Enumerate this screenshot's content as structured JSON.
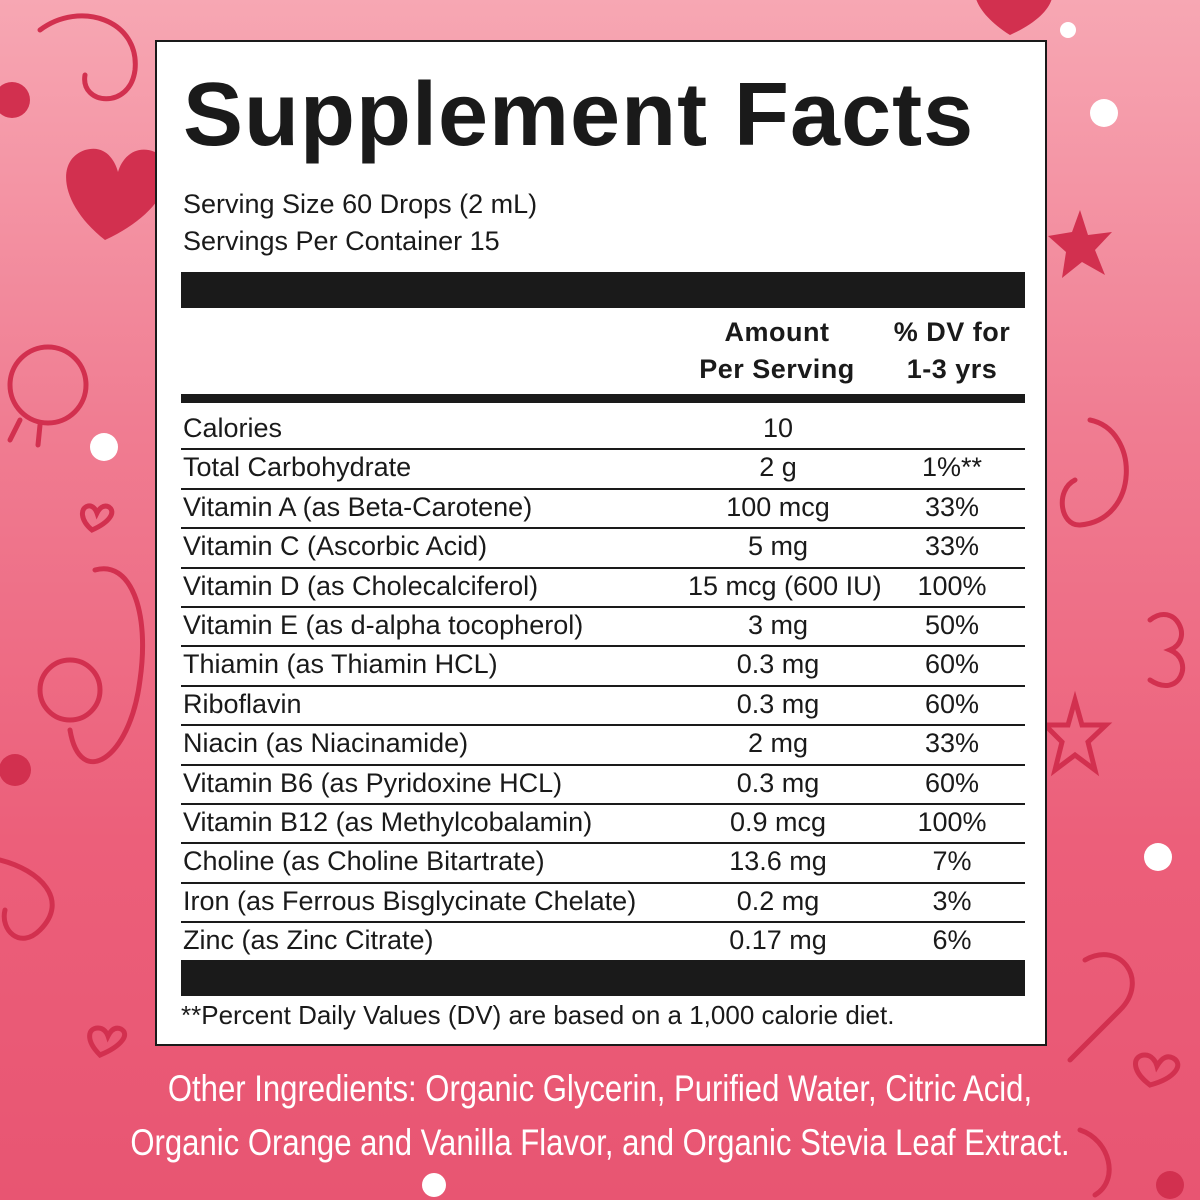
{
  "title": "Supplement Facts",
  "serving_size": "Serving Size 60 Drops (2 mL)",
  "servings_per_container": "Servings Per Container 15",
  "headers": {
    "amount_line1": "Amount",
    "amount_line2": "Per Serving",
    "dv_line1": "% DV for",
    "dv_line2": "1-3 yrs"
  },
  "rows": [
    {
      "name": "Calories",
      "amount": "10",
      "dv": ""
    },
    {
      "name": "Total Carbohydrate",
      "amount": "2 g",
      "dv": "1%**"
    },
    {
      "name": "Vitamin A (as Beta-Carotene)",
      "amount": "100 mcg",
      "dv": "33%"
    },
    {
      "name": "Vitamin C (Ascorbic Acid)",
      "amount": "5 mg",
      "dv": "33%"
    },
    {
      "name": "Vitamin D (as Cholecalciferol)",
      "amount": "15 mcg (600 IU)",
      "dv": "100%"
    },
    {
      "name": "Vitamin E (as d-alpha tocopherol)",
      "amount": "3 mg",
      "dv": "50%"
    },
    {
      "name": "Thiamin (as Thiamin HCL)",
      "amount": "0.3 mg",
      "dv": "60%"
    },
    {
      "name": "Riboflavin",
      "amount": "0.3 mg",
      "dv": "60%"
    },
    {
      "name": "Niacin (as Niacinamide)",
      "amount": "2 mg",
      "dv": "33%"
    },
    {
      "name": "Vitamin B6 (as Pyridoxine HCL)",
      "amount": "0.3 mg",
      "dv": "60%"
    },
    {
      "name": "Vitamin B12 (as Methylcobalamin)",
      "amount": "0.9 mcg",
      "dv": "100%"
    },
    {
      "name": "Choline (as Choline Bitartrate)",
      "amount": "13.6 mg",
      "dv": "7%"
    },
    {
      "name": "Iron (as Ferrous Bisglycinate Chelate)",
      "amount": "0.2 mg",
      "dv": "3%"
    },
    {
      "name": "Zinc (as Zinc Citrate)",
      "amount": "0.17 mg",
      "dv": "6%"
    }
  ],
  "footnote": "**Percent Daily Values (DV) are based on a 1,000 calorie diet.",
  "other_ingredients": {
    "line1": "Other Ingredients: Organic Glycerin, Purified Water, Citric Acid,",
    "line2": "Organic Orange and Vanilla Flavor, and Organic Stevia Leaf Extract."
  },
  "colors": {
    "background_top": "#f7a7b3",
    "background_bottom": "#e85572",
    "doodle": "#d2304f",
    "panel": "#ffffff",
    "ink": "#1a1a1a"
  }
}
